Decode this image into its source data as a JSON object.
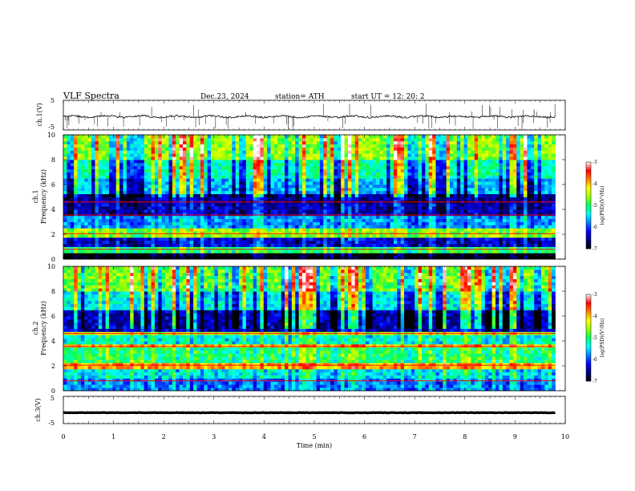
{
  "header": {
    "title": "VLF  Spectra",
    "date": "Dec.23, 2024",
    "station": "station= ATH",
    "start": "start  UT  =    12: 20: 2"
  },
  "chart_data": [
    {
      "type": "line",
      "name": "ch.1 waveform",
      "ylabel": "ch.1(V)",
      "ylim": [
        -5,
        5
      ],
      "yticks": [
        "5",
        "-5"
      ],
      "xlim": [
        0,
        10
      ],
      "level": -0.5,
      "note_level": "trace hovers near -0.5 V with frequent spikes"
    },
    {
      "type": "heatmap",
      "name": "ch.1 spectrogram",
      "ylabel_top": "ch.1",
      "ylabel": "Frequency (kHz)",
      "ylim": [
        0,
        10
      ],
      "yticks": [
        "0",
        "2",
        "4",
        "6",
        "8",
        "10"
      ],
      "xlim": [
        0,
        10
      ],
      "data_end_min": 9.8,
      "colorbar": {
        "label": "log(PSD)(V²/Hz)",
        "ticks": [
          "-3",
          "-4",
          "-5",
          "-6",
          "-7"
        ],
        "range": [
          -7,
          -3
        ]
      },
      "bands": [
        {
          "f0": 0,
          "f1": 0.6,
          "level": -7.0
        },
        {
          "f0": 0.6,
          "f1": 1.0,
          "level": -5.0
        },
        {
          "f0": 1.0,
          "f1": 1.8,
          "level": -6.3
        },
        {
          "f0": 1.8,
          "f1": 2.4,
          "level": -4.6
        },
        {
          "f0": 2.4,
          "f1": 3.6,
          "level": -5.7
        },
        {
          "f0": 3.6,
          "f1": 4.4,
          "level": -6.4
        },
        {
          "f0": 4.4,
          "f1": 5.2,
          "level": -6.5
        },
        {
          "f0": 5.2,
          "f1": 6.5,
          "level": -5.6
        },
        {
          "f0": 6.5,
          "f1": 8.0,
          "level": -5.2
        },
        {
          "f0": 8.0,
          "f1": 10.0,
          "level": -4.6
        }
      ]
    },
    {
      "type": "heatmap",
      "name": "ch.2 spectrogram",
      "ylabel_top": "ch.2",
      "ylabel": "Frequency (kHz)",
      "ylim": [
        0,
        10
      ],
      "yticks": [
        "0",
        "2",
        "4",
        "6",
        "8",
        "10"
      ],
      "xlim": [
        0,
        10
      ],
      "data_end_min": 9.8,
      "colorbar": {
        "label": "log(PSD)(V²/Hz)",
        "ticks": [
          "-3",
          "-4",
          "-5",
          "-6",
          "-7"
        ],
        "range": [
          -7,
          -3
        ]
      },
      "bands": [
        {
          "f0": 0,
          "f1": 1.0,
          "level": -5.8
        },
        {
          "f0": 1.0,
          "f1": 1.8,
          "level": -5.4
        },
        {
          "f0": 1.8,
          "f1": 2.3,
          "level": -3.9
        },
        {
          "f0": 2.3,
          "f1": 3.4,
          "level": -5.0
        },
        {
          "f0": 3.4,
          "f1": 3.7,
          "level": -4.0
        },
        {
          "f0": 3.7,
          "f1": 4.5,
          "level": -5.3
        },
        {
          "f0": 4.5,
          "f1": 4.8,
          "level": -4.4
        },
        {
          "f0": 4.8,
          "f1": 6.5,
          "level": -6.4
        },
        {
          "f0": 6.5,
          "f1": 8.0,
          "level": -5.4
        },
        {
          "f0": 8.0,
          "f1": 10.0,
          "level": -4.7
        }
      ]
    },
    {
      "type": "line",
      "name": "ch.3 waveform",
      "ylabel": "ch.3(V)",
      "ylim": [
        -5,
        5
      ],
      "yticks": [
        "5",
        "-5"
      ],
      "xlim": [
        0,
        10
      ],
      "level": -1.0,
      "xlabel": "Time (min)",
      "xticks": [
        "0",
        "1",
        "2",
        "3",
        "4",
        "5",
        "6",
        "7",
        "8",
        "9",
        "10"
      ]
    }
  ],
  "colors": {
    "scale": [
      "#000000",
      "#00007a",
      "#0000ff",
      "#0080ff",
      "#00ffff",
      "#00ff60",
      "#a0ff00",
      "#ffff00",
      "#ff8000",
      "#ff0000",
      "#ffffff"
    ]
  }
}
